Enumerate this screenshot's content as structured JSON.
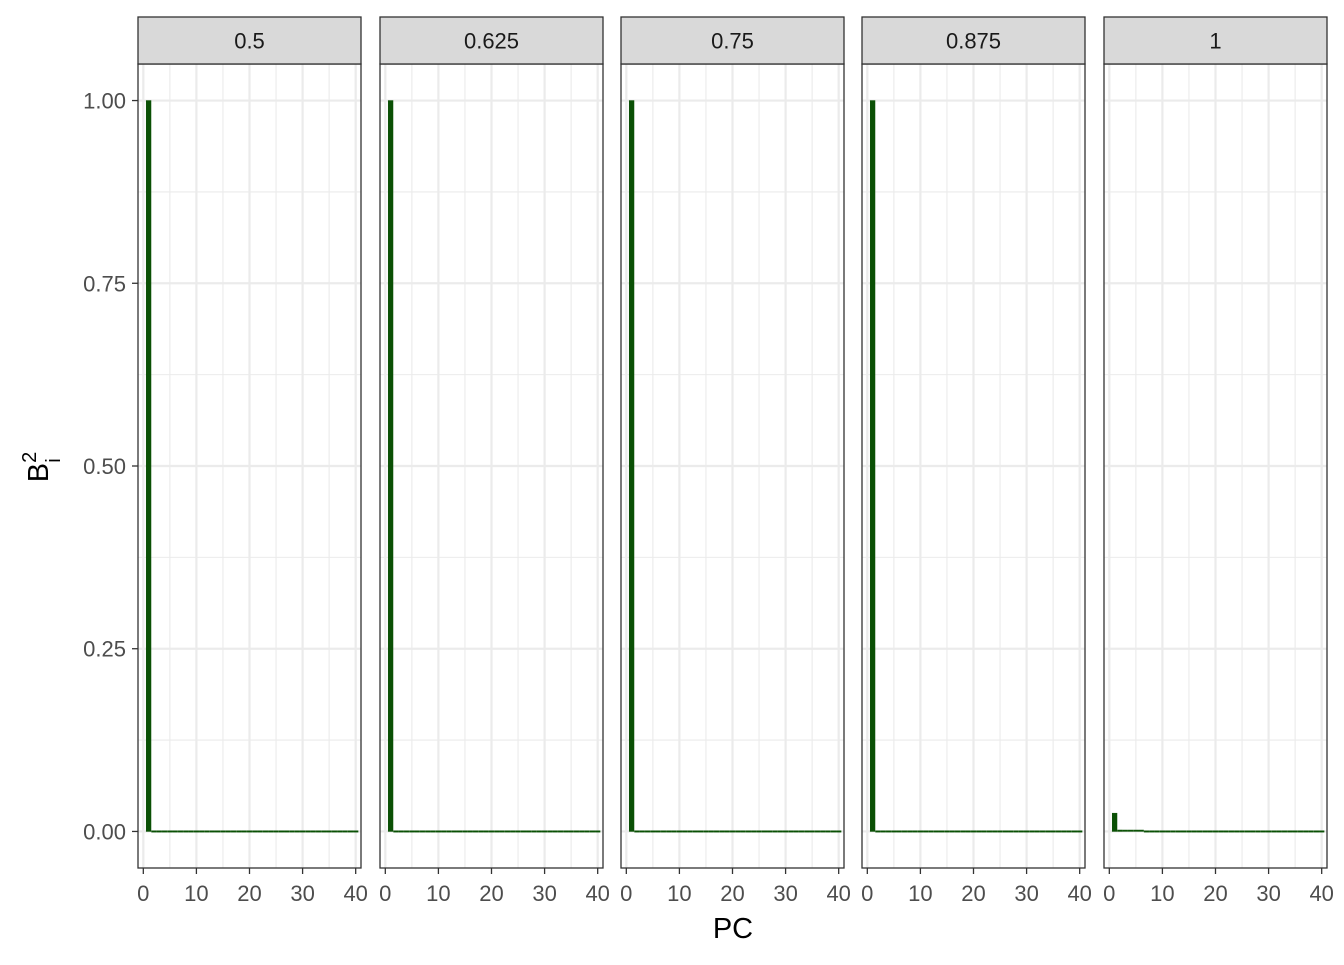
{
  "chart_data": {
    "type": "bar",
    "facet_labels": [
      "0.5",
      "0.625",
      "0.75",
      "0.875",
      "1"
    ],
    "x": [
      1,
      2,
      3,
      4,
      5,
      6,
      7,
      8,
      9,
      10,
      11,
      12,
      13,
      14,
      15,
      16,
      17,
      18,
      19,
      20,
      21,
      22,
      23,
      24,
      25,
      26,
      27,
      28,
      29,
      30,
      31,
      32,
      33,
      34,
      35,
      36,
      37,
      38,
      39,
      40
    ],
    "panels": [
      {
        "facet": "0.5",
        "values": [
          1.0,
          0,
          0,
          0,
          0,
          0,
          0,
          0,
          0,
          0,
          0,
          0,
          0,
          0,
          0,
          0,
          0,
          0,
          0,
          0,
          0,
          0,
          0,
          0,
          0,
          0,
          0,
          0,
          0,
          0,
          0,
          0,
          0,
          0,
          0,
          0,
          0,
          0,
          0,
          0
        ]
      },
      {
        "facet": "0.625",
        "values": [
          1.0,
          0,
          0,
          0,
          0,
          0,
          0,
          0,
          0,
          0,
          0,
          0,
          0,
          0,
          0,
          0,
          0,
          0,
          0,
          0,
          0,
          0,
          0,
          0,
          0,
          0,
          0,
          0,
          0,
          0,
          0,
          0,
          0,
          0,
          0,
          0,
          0,
          0,
          0,
          0
        ]
      },
      {
        "facet": "0.75",
        "values": [
          1.0,
          0,
          0,
          0,
          0,
          0,
          0,
          0,
          0,
          0,
          0,
          0,
          0,
          0,
          0,
          0,
          0,
          0,
          0,
          0,
          0,
          0,
          0,
          0,
          0,
          0,
          0,
          0,
          0,
          0,
          0,
          0,
          0,
          0,
          0,
          0,
          0,
          0,
          0,
          0
        ]
      },
      {
        "facet": "0.875",
        "values": [
          1.0,
          0,
          0,
          0,
          0,
          0,
          0,
          0,
          0,
          0,
          0,
          0,
          0,
          0,
          0,
          0,
          0,
          0,
          0,
          0,
          0,
          0,
          0,
          0,
          0,
          0,
          0,
          0,
          0,
          0,
          0,
          0,
          0,
          0,
          0,
          0,
          0,
          0,
          0,
          0
        ]
      },
      {
        "facet": "1",
        "values": [
          0.025,
          0.002,
          0.001,
          0.001,
          0.001,
          0.001,
          0,
          0,
          0,
          0,
          0,
          0,
          0,
          0,
          0,
          0,
          0,
          0,
          0,
          0,
          0,
          0,
          0,
          0,
          0,
          0,
          0,
          0,
          0,
          0,
          0,
          0,
          0,
          0,
          0,
          0,
          0,
          0,
          0,
          0
        ]
      }
    ],
    "xlabel": "PC",
    "ylabel": "B",
    "ylabel_superscript": "2",
    "ylabel_subscript": "i",
    "xlim": [
      -1,
      41
    ],
    "ylim": [
      -0.05,
      1.05
    ],
    "x_ticks": [
      0,
      10,
      20,
      30,
      40
    ],
    "x_tick_labels": [
      "0",
      "10",
      "20",
      "30",
      "40"
    ],
    "y_ticks": [
      0,
      0.25,
      0.5,
      0.75,
      1.0
    ],
    "y_tick_labels": [
      "0.00",
      "0.25",
      "0.50",
      "0.75",
      "1.00"
    ],
    "grid": true,
    "bar_color": "#0a5005",
    "panel_background": "#ffffff",
    "grid_color": "#ebebeb",
    "strip_fill": "#d9d9d9",
    "border_color": "#333333",
    "text_color": "#4d4d4d",
    "title_color": "#000000"
  }
}
